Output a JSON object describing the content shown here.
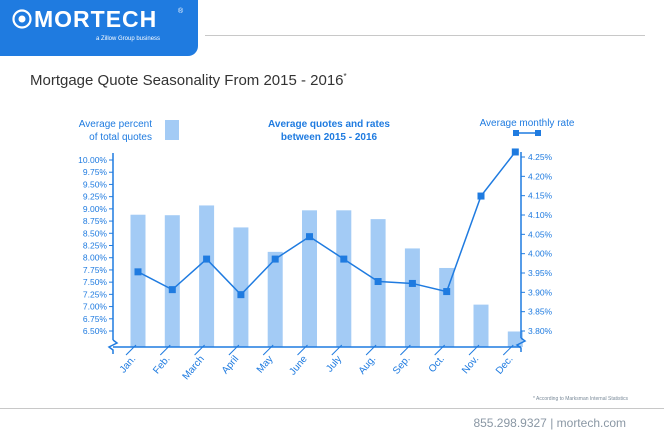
{
  "logo": {
    "name": "MORTECH",
    "registered": "®",
    "tagline": "a Zillow Group business"
  },
  "title": "Mortgage Quote Seasonality From 2015 - 2016",
  "title_mark": "*",
  "footer": {
    "footnote": "* According to Marksman Internal Statistics",
    "contact": "855.298.9327  |  mortech.com"
  },
  "colors": {
    "bar": "#a3cbf5",
    "line": "#1f7be0",
    "axis": "#1f7be0",
    "title": "#333333",
    "logo_bg": "#1f7be0"
  },
  "chart_data": {
    "type": "bar+line",
    "title": "Average quotes and rates between 2015 - 2016",
    "categories": [
      "Jan.",
      "Feb.",
      "March",
      "April",
      "May",
      "June",
      "July",
      "Aug.",
      "Sep.",
      "Oct.",
      "Nov.",
      "Dec."
    ],
    "series": [
      {
        "name": "Average percent of total quotes",
        "type": "bar",
        "axis": "left",
        "values": [
          8.88,
          8.87,
          9.07,
          8.62,
          8.12,
          8.97,
          8.97,
          8.79,
          8.19,
          7.79,
          7.04,
          6.49
        ]
      },
      {
        "name": "Average monthly rate",
        "type": "line",
        "axis": "right",
        "values": [
          3.953,
          3.907,
          3.986,
          3.894,
          3.986,
          4.044,
          3.986,
          3.928,
          3.923,
          3.902,
          4.149,
          4.263
        ]
      }
    ],
    "left_axis": {
      "ticks": [
        "6.50%",
        "6.75%",
        "7.00%",
        "7.25%",
        "7.50%",
        "7.75%",
        "8.00%",
        "8.25%",
        "8.50%",
        "8.75%",
        "9.00%",
        "9.25%",
        "9.50%",
        "9.75%",
        "10.00%"
      ],
      "range": [
        6.5,
        10.0
      ]
    },
    "right_axis": {
      "ticks": [
        "3.80%",
        "3.85%",
        "3.90%",
        "3.95%",
        "4.00%",
        "4.05%",
        "4.10%",
        "4.15%",
        "4.20%",
        "4.25%"
      ],
      "range": [
        3.8,
        4.25
      ]
    },
    "legend": {
      "bar_label": [
        "Average percent",
        "of total quotes"
      ],
      "line_label": "Average monthly rate"
    },
    "chart_title_lines": [
      "Average quotes and rates",
      "between 2015 - 2016"
    ]
  }
}
